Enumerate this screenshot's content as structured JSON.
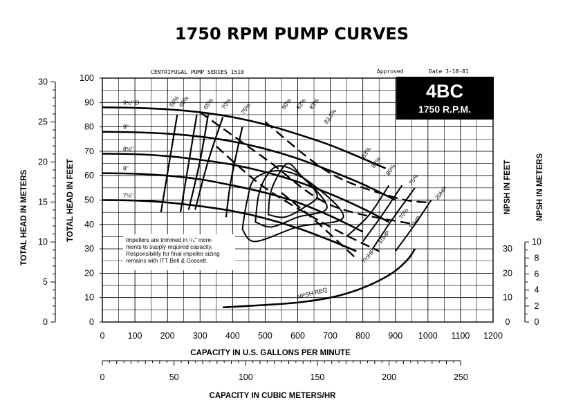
{
  "chart_data": {
    "type": "line",
    "title": "1750 RPM PUMP CURVES",
    "subtitle": "CENTRIFUGAL PUMP SERIES 1510",
    "approval": "Approved",
    "date": "Date 3-18-81",
    "model": "4BC",
    "speed": "1750 R.P.M.",
    "xlabel": "CAPACITY IN U.S. GALLONS PER MINUTE",
    "x2label": "CAPACITY IN CUBIC METERS/HR",
    "ylabel_feet": "TOTAL HEAD IN FEET",
    "ylabel_meters": "TOTAL HEAD IN METERS",
    "ylabel_npsh_feet": "NPSH IN FEET",
    "ylabel_npsh_meters": "NPSH IN METERS",
    "xlim": [
      0,
      1200
    ],
    "ylim": [
      0,
      100
    ],
    "x_ticks": [
      "0",
      "100",
      "200",
      "300",
      "400",
      "500",
      "600",
      "700",
      "800",
      "900",
      "1000",
      "1100",
      "1200"
    ],
    "x2_ticks": [
      "0",
      "50",
      "100",
      "150",
      "200",
      "250"
    ],
    "y_ticks": [
      "0",
      "10",
      "20",
      "30",
      "40",
      "50",
      "60",
      "70",
      "80",
      "90",
      "100"
    ],
    "y_meters_ticks": [
      "0",
      "5",
      "10",
      "15",
      "20",
      "25",
      "30"
    ],
    "npsh_feet_ticks": [
      "0",
      "10",
      "20",
      "30"
    ],
    "npsh_meters_ticks": [
      "0",
      "2",
      "4",
      "6",
      "8",
      "10"
    ],
    "grid": true,
    "note": [
      "Impellers are trimmed in ¹/₈\" incre-",
      "ments to supply required capacity.",
      "Responsibility for final impeller sizing",
      "remains with ITT Bell & Gossett."
    ],
    "series": [
      {
        "name": "9½\" D",
        "x": [
          0,
          100,
          200,
          300,
          400,
          500,
          600,
          700,
          800,
          870
        ],
        "y": [
          88,
          87.8,
          87.2,
          86,
          84,
          81,
          77,
          72.5,
          67,
          63
        ]
      },
      {
        "name": "9\"",
        "x": [
          0,
          100,
          200,
          300,
          400,
          500,
          600,
          700,
          800,
          900
        ],
        "y": [
          78,
          77.8,
          77.2,
          76,
          74,
          71,
          67,
          62,
          56.5,
          50
        ]
      },
      {
        "name": "8½\"",
        "x": [
          0,
          100,
          200,
          300,
          400,
          500,
          600,
          700,
          800,
          880
        ],
        "y": [
          69,
          68.8,
          68,
          66.5,
          64.5,
          61.5,
          57.5,
          52.5,
          46.5,
          41
        ]
      },
      {
        "name": "8\"",
        "x": [
          0,
          100,
          200,
          300,
          400,
          500,
          600,
          700,
          800
        ],
        "y": [
          61,
          60.8,
          60,
          58.5,
          56,
          53,
          49,
          43.5,
          37
        ]
      },
      {
        "name": "7½\"",
        "x": [
          0,
          100,
          200,
          300,
          400,
          500,
          600,
          700,
          780
        ],
        "y": [
          50,
          49.8,
          49,
          47.5,
          45.5,
          42.5,
          38.5,
          33.5,
          29
        ]
      },
      {
        "name": "NPSH REQ",
        "axis": "npsh_feet",
        "x": [
          370,
          500,
          600,
          700,
          780,
          850,
          900,
          940,
          960
        ],
        "y": [
          6,
          7,
          8,
          10,
          13,
          17,
          21,
          26,
          30
        ]
      }
    ],
    "efficiency_labels": [
      "50%",
      "60%",
      "65%",
      "70%",
      "75%",
      "80%",
      "82%",
      "83%",
      "83.5%",
      "83%",
      "82%",
      "80%",
      "75%",
      "70%"
    ],
    "horsepower_labels": [
      "7½HP",
      "10HP",
      "15HP",
      "20HP"
    ]
  }
}
